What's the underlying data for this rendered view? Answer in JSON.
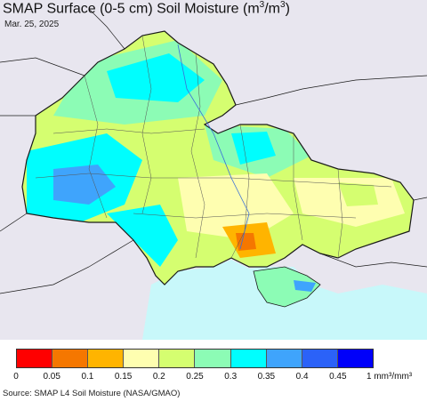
{
  "title": {
    "main": "SMAP Surface (0-5 cm) Soil Moisture (m",
    "sup1": "3",
    "mid": "/m",
    "sup2": "3",
    "end": ")"
  },
  "date": "Mar. 25, 2025",
  "legend": {
    "colors": [
      "#fe0000",
      "#f57700",
      "#ffb400",
      "#fefeb0",
      "#d5fe70",
      "#8cfcb5",
      "#00fefe",
      "#3fa4fc",
      "#2b62f8",
      "#0000fa"
    ],
    "ticks": [
      "0",
      "0.05",
      "0.1",
      "0.15",
      "0.2",
      "0.25",
      "0.3",
      "0.35",
      "0.4",
      "0.45",
      "1 mm³/mm³"
    ]
  },
  "source": "Source: SMAP L4 Soil Moisture (NASA/GMAO)",
  "map_colors": {
    "background": "#e8e6ef",
    "sea": "#c8f8fa",
    "border": "#1a1a1a"
  }
}
